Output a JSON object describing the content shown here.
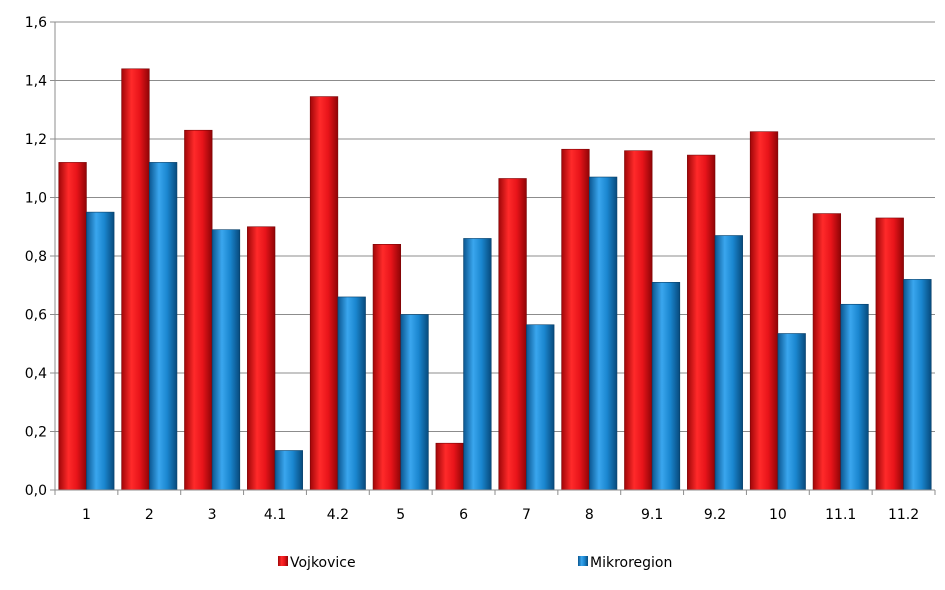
{
  "chart_data": {
    "type": "bar",
    "categories": [
      "1",
      "2",
      "3",
      "4.1",
      "4.2",
      "5",
      "6",
      "7",
      "8",
      "9.1",
      "9.2",
      "10",
      "11.1",
      "11.2"
    ],
    "series": [
      {
        "name": "Vojkovice",
        "color": "#e8141a",
        "values": [
          1.12,
          1.44,
          1.23,
          0.9,
          1.345,
          0.84,
          0.16,
          1.065,
          1.165,
          1.16,
          1.145,
          1.225,
          0.945,
          0.93
        ]
      },
      {
        "name": "Mikroregion",
        "color": "#1a86cf",
        "values": [
          0.95,
          1.12,
          0.89,
          0.135,
          0.66,
          0.6,
          0.86,
          0.565,
          1.07,
          0.71,
          0.87,
          0.535,
          0.635,
          0.72
        ]
      }
    ],
    "ylim": [
      0,
      1.6
    ],
    "yticks": [
      "0,0",
      "0,2",
      "0,4",
      "0,6",
      "0,8",
      "1,0",
      "1,2",
      "1,4",
      "1,6"
    ],
    "ytick_values": [
      0,
      0.2,
      0.4,
      0.6,
      0.8,
      1.0,
      1.2,
      1.4,
      1.6
    ],
    "grid": true,
    "legend_position": "bottom",
    "title": "",
    "xlabel": "",
    "ylabel": ""
  }
}
